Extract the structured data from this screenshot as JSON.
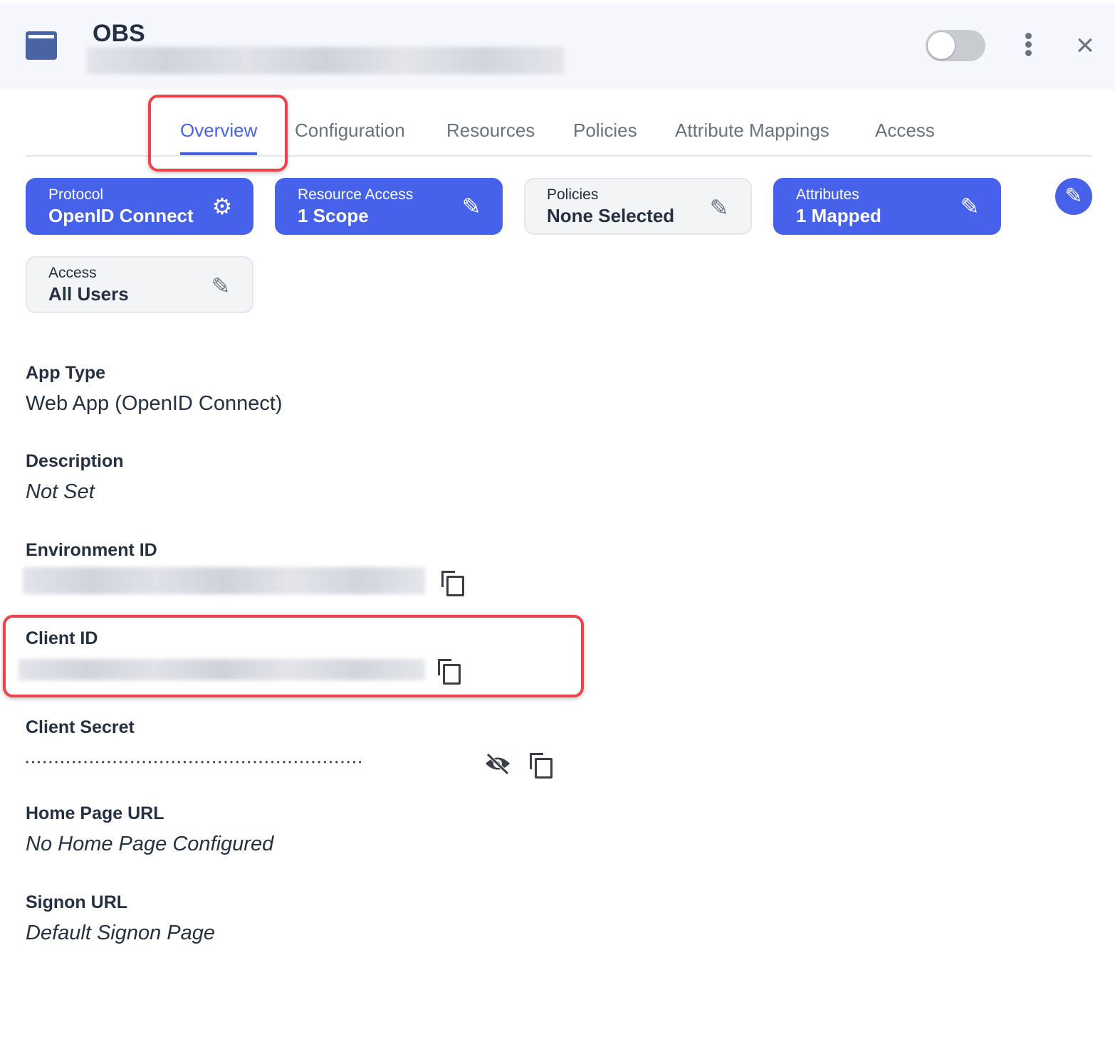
{
  "header": {
    "title": "OBS",
    "app_icon": "application-window-icon",
    "enabled": false
  },
  "tabs": [
    {
      "label": "Overview",
      "active": true
    },
    {
      "label": "Configuration"
    },
    {
      "label": "Resources"
    },
    {
      "label": "Policies"
    },
    {
      "label": "Attribute Mappings"
    },
    {
      "label": "Access"
    }
  ],
  "cards": [
    {
      "label": "Protocol",
      "value": "OpenID Connect",
      "icon": "gears-icon",
      "style": "blue"
    },
    {
      "label": "Resource Access",
      "value": "1 Scope",
      "icon": "pencil-icon",
      "style": "blue"
    },
    {
      "label": "Policies",
      "value": "None Selected",
      "icon": "pencil-icon",
      "style": "grey"
    },
    {
      "label": "Attributes",
      "value": "1 Mapped",
      "icon": "pencil-icon",
      "style": "blue"
    },
    {
      "label": "Access",
      "value": "All Users",
      "icon": "pencil-icon",
      "style": "grey"
    }
  ],
  "fields": {
    "app_type": {
      "label": "App Type",
      "value": "Web App (OpenID Connect)"
    },
    "description": {
      "label": "Description",
      "value": "Not Set"
    },
    "environment_id": {
      "label": "Environment ID"
    },
    "client_id": {
      "label": "Client ID"
    },
    "client_secret": {
      "label": "Client Secret",
      "value": "••••••••••••••••••••••••••••••••••••••••••••••••••••••••••"
    },
    "home_page_url": {
      "label": "Home Page URL",
      "value": "No Home Page Configured"
    },
    "signon_url": {
      "label": "Signon URL",
      "value": "Default Signon Page"
    }
  },
  "colors": {
    "accent": "#4661ea",
    "highlight": "#ee4248"
  }
}
